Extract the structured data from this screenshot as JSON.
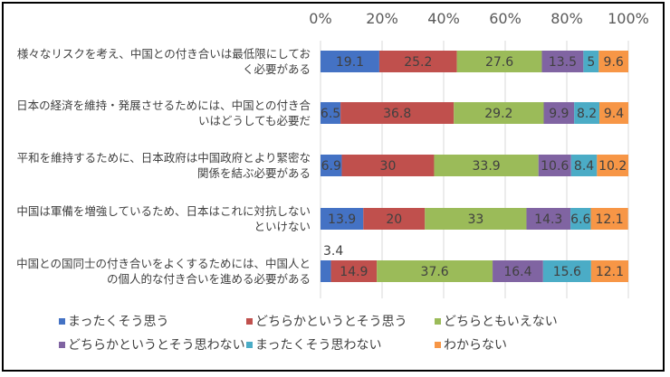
{
  "chart_data": {
    "type": "bar",
    "orientation": "horizontal",
    "stacked": true,
    "percent": true,
    "xlim": [
      0,
      100
    ],
    "xticks": [
      "0%",
      "20%",
      "40%",
      "60%",
      "80%",
      "100%"
    ],
    "categories": [
      [
        "様々なリスクを考え、中国との付き合いは最低限にしてお",
        "く必要がある"
      ],
      [
        "日本の経済を維持・発展させるためには、中国との付き合",
        "いはどうしても必要だ"
      ],
      [
        "平和を維持するために、日本政府は中国政府とより緊密な",
        "関係を結ぶ必要がある"
      ],
      [
        "中国は軍備を増強しているため、日本はこれに対抗しない",
        "といけない"
      ],
      [
        "中国との国同士の付き合いをよくするためには、中国人と",
        "の個人的な付き合いを進める必要がある"
      ]
    ],
    "series": [
      {
        "name": "まったくそう思う",
        "color": "#4472C4",
        "values": [
          19.1,
          6.5,
          6.9,
          13.9,
          3.4
        ]
      },
      {
        "name": "どちらかというとそう思う",
        "color": "#C0504D",
        "values": [
          25.2,
          36.8,
          30,
          20,
          14.9
        ]
      },
      {
        "name": "どちらともいえない",
        "color": "#9BBB59",
        "values": [
          27.6,
          29.2,
          33.9,
          33,
          37.6
        ]
      },
      {
        "name": "どちらかというとそう思わない",
        "color": "#8064A2",
        "values": [
          13.5,
          9.9,
          10.6,
          14.3,
          16.4
        ]
      },
      {
        "name": "まったくそう思わない",
        "color": "#4BACC6",
        "values": [
          5,
          8.2,
          8.4,
          6.6,
          15.6
        ]
      },
      {
        "name": "わからない",
        "color": "#F79646",
        "values": [
          9.6,
          9.4,
          10.2,
          12.1,
          12.1
        ]
      }
    ],
    "legend_position": "bottom"
  }
}
